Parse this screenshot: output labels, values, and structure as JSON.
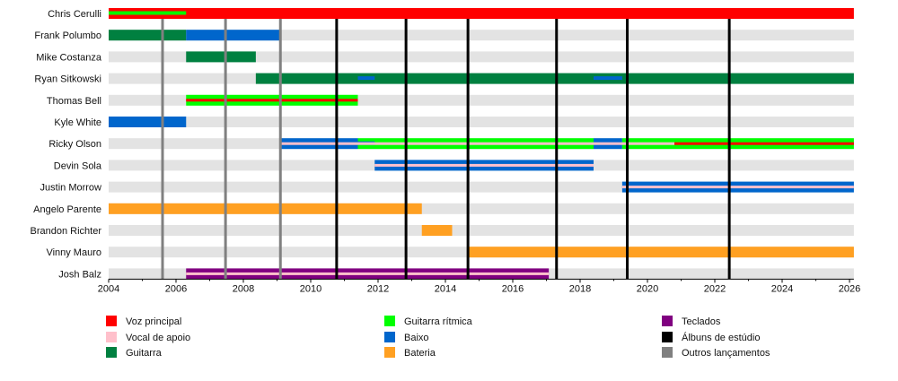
{
  "chart_data": {
    "type": "timeline",
    "title": "",
    "xlim": [
      2004,
      2026.13
    ],
    "x_ticks": [
      2004,
      2006,
      2008,
      2010,
      2012,
      2014,
      2016,
      2018,
      2020,
      2022,
      2024,
      2026
    ],
    "colors": {
      "vocals": "#ff0000",
      "backing": "#ffc0cb",
      "guitar": "#008040",
      "rhythm": "#00ff00",
      "bass": "#0066cc",
      "drums": "#ffa022",
      "keys": "#800080",
      "album": "#000000",
      "other": "#808080"
    },
    "members": [
      {
        "name": "Chris Cerulli",
        "bars": [
          {
            "role": "vocals",
            "start": 2004,
            "end": 2026.13,
            "style": "full"
          },
          {
            "role": "rhythm",
            "start": 2004,
            "end": 2006.3,
            "style": "thin"
          }
        ]
      },
      {
        "name": "Frank Polumbo",
        "bars": [
          {
            "role": "guitar",
            "start": 2004,
            "end": 2006.3,
            "style": "full"
          },
          {
            "role": "bass",
            "start": 2006.3,
            "end": 2009.1,
            "style": "full"
          }
        ]
      },
      {
        "name": "Mike Costanza",
        "bars": [
          {
            "role": "guitar",
            "start": 2006.3,
            "end": 2008.37,
            "style": "full"
          }
        ]
      },
      {
        "name": "Ryan Sitkowski",
        "bars": [
          {
            "role": "guitar",
            "start": 2008.37,
            "end": 2026.13,
            "style": "full"
          },
          {
            "role": "bass",
            "start": 2011.4,
            "end": 2011.9,
            "style": "thin"
          },
          {
            "role": "bass",
            "start": 2018.4,
            "end": 2019.25,
            "style": "thin"
          }
        ]
      },
      {
        "name": "Thomas Bell",
        "bars": [
          {
            "role": "rhythm",
            "start": 2006.3,
            "end": 2011.4,
            "style": "full"
          },
          {
            "role": "vocals",
            "start": 2006.3,
            "end": 2011.4,
            "style": "center"
          }
        ]
      },
      {
        "name": "Kyle White",
        "bars": [
          {
            "role": "bass",
            "start": 2004,
            "end": 2006.3,
            "style": "full"
          }
        ]
      },
      {
        "name": "Ricky Olson",
        "bars": [
          {
            "role": "bass",
            "start": 2009.1,
            "end": 2011.4,
            "style": "full"
          },
          {
            "role": "rhythm",
            "start": 2011.4,
            "end": 2018.4,
            "style": "full"
          },
          {
            "role": "bass",
            "start": 2011.4,
            "end": 2011.9,
            "style": "thin"
          },
          {
            "role": "bass",
            "start": 2018.4,
            "end": 2019.25,
            "style": "full"
          },
          {
            "role": "rhythm",
            "start": 2019.25,
            "end": 2026.13,
            "style": "full"
          },
          {
            "role": "backing",
            "start": 2009.1,
            "end": 2020.8,
            "style": "center"
          },
          {
            "role": "vocals",
            "start": 2020.8,
            "end": 2026.13,
            "style": "center"
          }
        ]
      },
      {
        "name": "Devin Sola",
        "bars": [
          {
            "role": "bass",
            "start": 2011.9,
            "end": 2018.4,
            "style": "full"
          },
          {
            "role": "backing",
            "start": 2011.9,
            "end": 2018.4,
            "style": "center"
          }
        ]
      },
      {
        "name": "Justin Morrow",
        "bars": [
          {
            "role": "bass",
            "start": 2019.25,
            "end": 2026.13,
            "style": "full"
          },
          {
            "role": "backing",
            "start": 2019.25,
            "end": 2026.13,
            "style": "center"
          }
        ]
      },
      {
        "name": "Angelo Parente",
        "bars": [
          {
            "role": "drums",
            "start": 2004,
            "end": 2013.3,
            "style": "full"
          }
        ]
      },
      {
        "name": "Brandon Richter",
        "bars": [
          {
            "role": "drums",
            "start": 2013.3,
            "end": 2014.2,
            "style": "full"
          }
        ]
      },
      {
        "name": "Vinny Mauro",
        "bars": [
          {
            "role": "drums",
            "start": 2014.7,
            "end": 2026.13,
            "style": "full"
          }
        ]
      },
      {
        "name": "Josh Balz",
        "bars": [
          {
            "role": "keys",
            "start": 2006.3,
            "end": 2017.07,
            "style": "full"
          },
          {
            "role": "backing",
            "start": 2006.3,
            "end": 2017.07,
            "style": "center"
          }
        ]
      }
    ],
    "events": [
      {
        "type": "other",
        "year": 2005.6
      },
      {
        "type": "other",
        "year": 2007.47
      },
      {
        "type": "other",
        "year": 2009.1
      },
      {
        "type": "album",
        "year": 2010.77
      },
      {
        "type": "album",
        "year": 2012.83
      },
      {
        "type": "album",
        "year": 2014.67
      },
      {
        "type": "album",
        "year": 2017.3
      },
      {
        "type": "album",
        "year": 2019.4
      },
      {
        "type": "album",
        "year": 2022.43
      }
    ],
    "legend": [
      {
        "role": "vocals",
        "label": "Voz principal"
      },
      {
        "role": "backing",
        "label": "Vocal de apoio"
      },
      {
        "role": "guitar",
        "label": "Guitarra"
      },
      {
        "role": "rhythm",
        "label": "Guitarra rítmica"
      },
      {
        "role": "bass",
        "label": "Baixo"
      },
      {
        "role": "drums",
        "label": "Bateria"
      },
      {
        "role": "keys",
        "label": "Teclados"
      },
      {
        "role": "album",
        "label": "Álbuns de estúdio"
      },
      {
        "role": "other",
        "label": "Outros lançamentos"
      }
    ],
    "legend_placement": "bottom"
  }
}
